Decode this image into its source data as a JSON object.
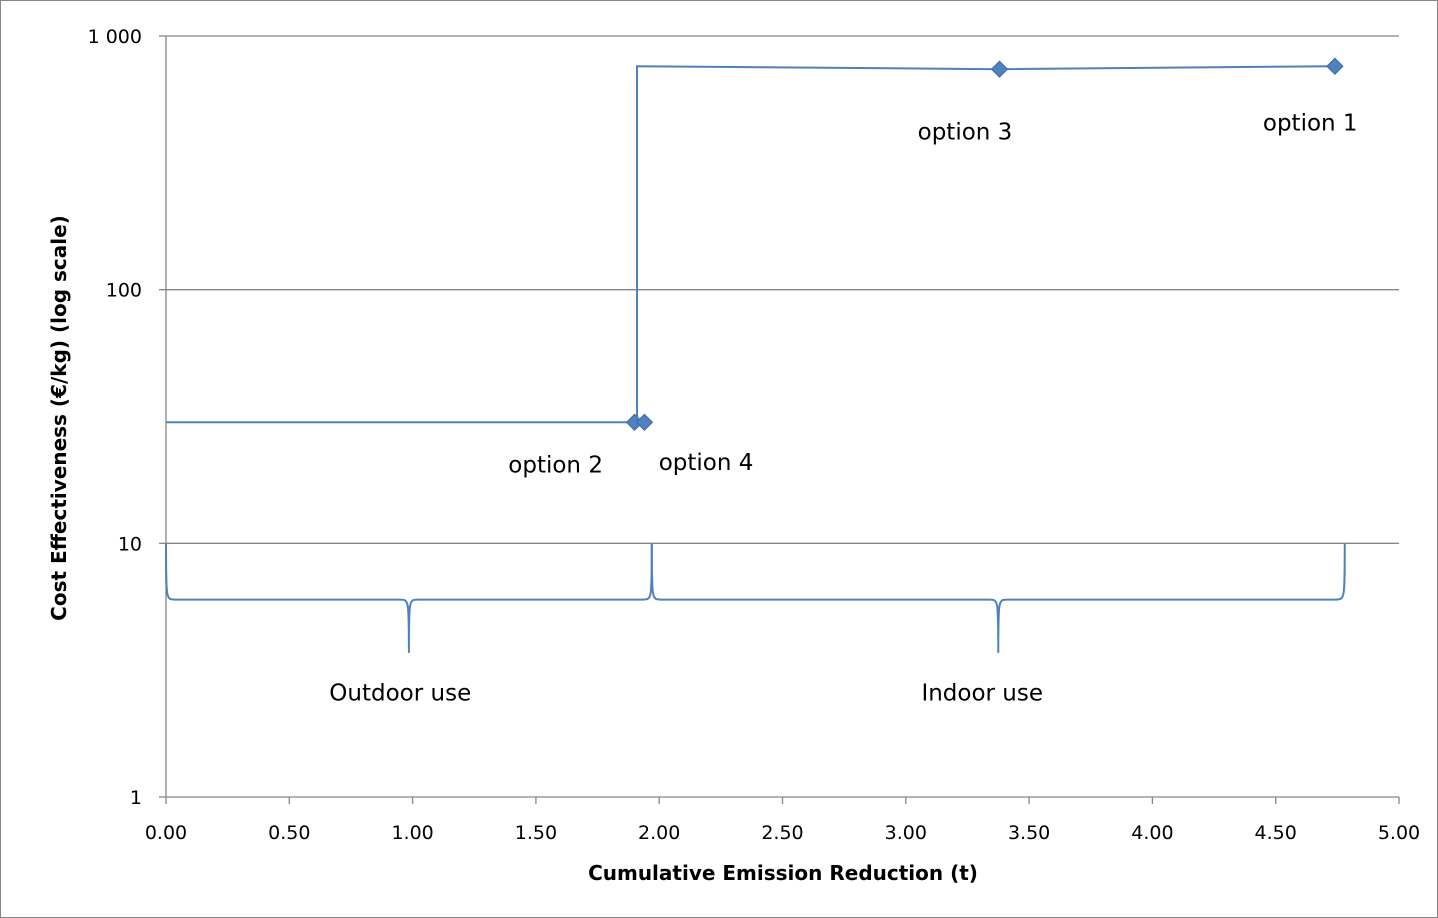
{
  "chart_data": {
    "type": "line",
    "title": "",
    "xlabel": "Cumulative Emission Reduction (t)",
    "ylabel": "Cost Effectiveness (€/kg) (log scale)",
    "xlim": [
      0,
      5
    ],
    "ylim": [
      1,
      1000
    ],
    "y_scale": "log",
    "grid": "horizontal",
    "legend": "none",
    "x_ticks": [
      "0.00",
      "0.50",
      "1.00",
      "1.50",
      "2.00",
      "2.50",
      "3.00",
      "3.50",
      "4.00",
      "4.50",
      "5.00"
    ],
    "y_ticks": [
      "1",
      "10",
      "100",
      "1 000"
    ],
    "series_color": "#4F81BD",
    "series": [
      {
        "points": [
          {
            "x": 0.0,
            "y": 30
          },
          {
            "x": 1.91,
            "y": 30
          },
          {
            "x": 1.91,
            "y": 760
          },
          {
            "x": 3.38,
            "y": 740
          },
          {
            "x": 4.74,
            "y": 760
          }
        ]
      }
    ],
    "markers": [
      {
        "x": 1.9,
        "y": 30
      },
      {
        "x": 1.94,
        "y": 30
      },
      {
        "x": 3.38,
        "y": 740
      },
      {
        "x": 4.74,
        "y": 760
      }
    ],
    "annotations": [
      {
        "text": "option 2",
        "x": 1.58,
        "y": 19.0
      },
      {
        "text": "option 4",
        "x": 2.19,
        "y": 19.5
      },
      {
        "text": "option 3",
        "x": 3.24,
        "y": 390
      },
      {
        "text": "option 1",
        "x": 4.64,
        "y": 425
      },
      {
        "text": "Outdoor use",
        "x": 0.95,
        "y": 2.4
      },
      {
        "text": "Indoor use",
        "x": 3.31,
        "y": 2.4
      }
    ],
    "braces": [
      {
        "label": "Outdoor use",
        "x_start": 0.0,
        "x_end": 1.97
      },
      {
        "label": "Indoor use",
        "x_start": 1.97,
        "x_end": 4.78
      }
    ]
  }
}
